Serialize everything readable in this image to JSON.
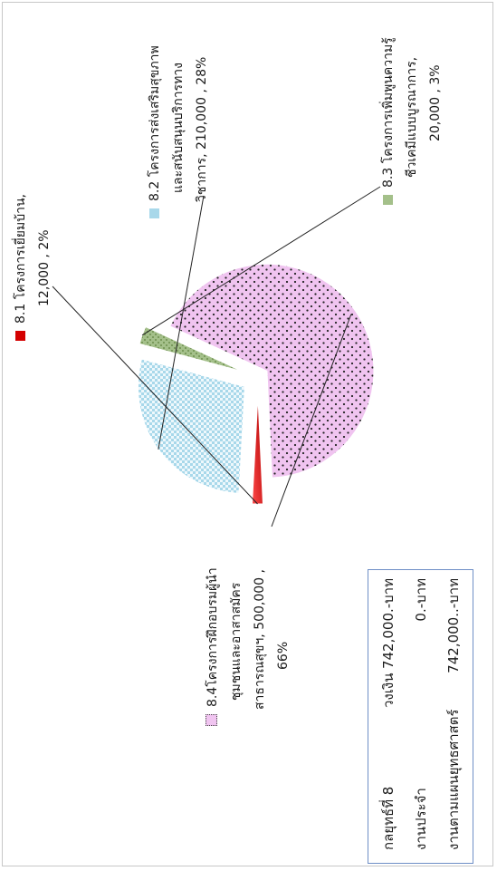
{
  "budget": {
    "rows": [
      {
        "label": "กลยุทธ์ที่ 8",
        "middle": "วงเงิน",
        "amount": "742,000.-บาท"
      },
      {
        "label": "งานประจำ",
        "middle": "",
        "amount": "0.-บาท"
      },
      {
        "label": "งานตามแผนยุทธศาสตร์",
        "middle": "",
        "amount": "742,000..-บาท"
      }
    ]
  },
  "chart_data": {
    "type": "pie",
    "categories": [
      "8.1 โครงการเยี่ยมบ้าน",
      "8.2 โครงการส่งเสริมสุขภาพและสนับสนุนบริการทางวิชาการ",
      "8.3 โครงการเพิ่มพูนความรู้ชีวเคมีแบบบูรณาการ",
      "8.4โครงการฝึกอบรมผู้นำชุมชนและอาสาสมัครสาธารณสุขฯ"
    ],
    "values": [
      12000,
      210000,
      20000,
      500000
    ],
    "percents": [
      2,
      28,
      3,
      66
    ],
    "colors": [
      "#d40000",
      "#a8d8ea",
      "#a4c08a",
      "#f0c4f0"
    ],
    "exploded": true,
    "labels": [
      {
        "lines": [
          "8.1 โครงการเยี่ยมบ้าน,",
          "12,000 , 2%"
        ]
      },
      {
        "lines": [
          "8.2 โครงการส่งเสริมสุขภาพ",
          "และสนับสนุนบริการทาง",
          "วิชาการ,  210,000 , 28%"
        ]
      },
      {
        "lines": [
          "8.3 โครงการเพิ่มพูนความรู้",
          "ชีวเคมีแบบบูรณาการ,",
          "20,000 , 3%"
        ]
      },
      {
        "lines": [
          "8.4โครงการฝึกอบรมผู้นำ",
          "ชุมชนและอาสาสมัคร",
          "สาธารณสุขฯ,  500,000 ,",
          "66%"
        ]
      }
    ]
  }
}
